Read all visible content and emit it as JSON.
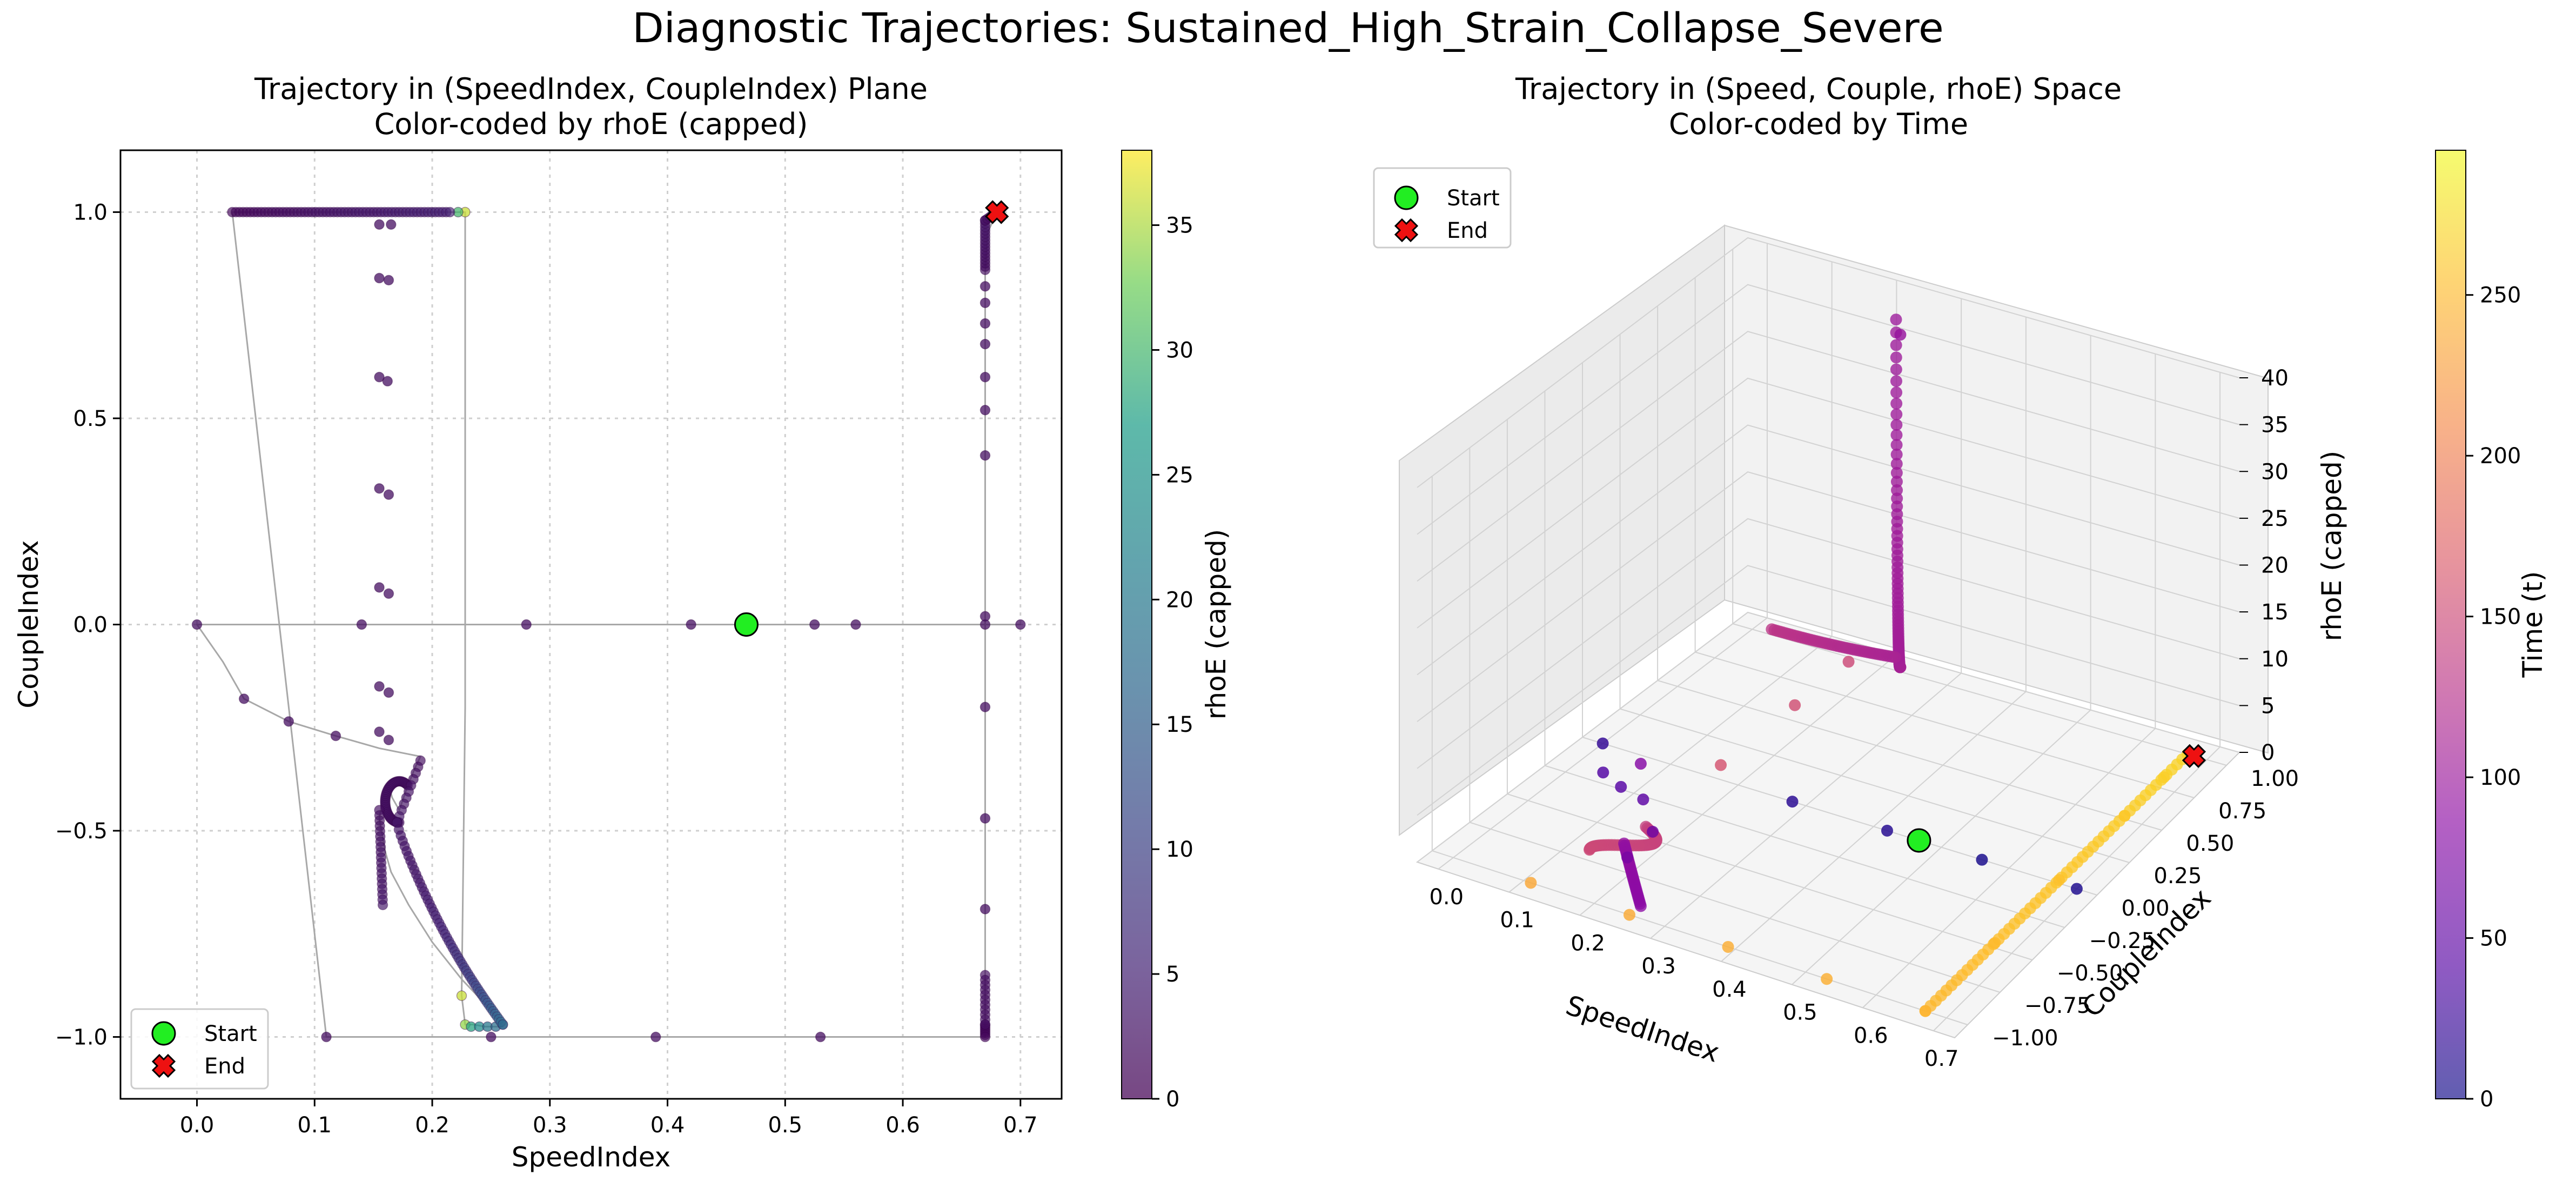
{
  "figure": {
    "suptitle": "Diagnostic Trajectories: Sustained_High_Strain_Collapse_Severe"
  },
  "legend": {
    "start_label": "Start",
    "end_label": "End"
  },
  "chart_data": [
    {
      "type": "scatter",
      "title_line1": "Trajectory in (SpeedIndex, CoupleIndex) Plane",
      "title_line2": "Color-coded by rhoE (capped)",
      "xlabel": "SpeedIndex",
      "ylabel": "CoupleIndex",
      "xlim": [
        -0.065,
        0.735
      ],
      "ylim": [
        -1.15,
        1.15
      ],
      "xticks": [
        0.0,
        0.1,
        0.2,
        0.3,
        0.4,
        0.5,
        0.6,
        0.7
      ],
      "xtick_labels": [
        "0.0",
        "0.1",
        "0.2",
        "0.3",
        "0.4",
        "0.5",
        "0.6",
        "0.7"
      ],
      "yticks": [
        -1.0,
        -0.5,
        0.0,
        0.5,
        1.0
      ],
      "ytick_labels": [
        "−1.0",
        "−0.5",
        "0.0",
        "0.5",
        "1.0"
      ],
      "grid": true,
      "legend_position": "lower-left",
      "colorbar": {
        "label": "rhoE (capped)",
        "colormap": "viridis",
        "range": [
          0,
          38
        ],
        "ticks": [
          0,
          5,
          10,
          15,
          20,
          25,
          30,
          35
        ],
        "tick_labels": [
          "0",
          "5",
          "10",
          "15",
          "20",
          "25",
          "30",
          "35"
        ]
      },
      "start": {
        "x": 0.467,
        "y": 0.0,
        "color": "#22ee22"
      },
      "end": {
        "x": 0.68,
        "y": 1.0,
        "color": "#ee1111"
      },
      "path": [
        [
          0.467,
          0.0
        ],
        [
          0.56,
          0.0
        ],
        [
          0.7,
          0.0
        ],
        [
          0.7,
          0.0
        ],
        [
          0.67,
          0.0
        ],
        [
          0.42,
          0.0
        ],
        [
          0.28,
          0.0
        ],
        [
          0.14,
          0.0
        ],
        [
          0.0,
          0.0
        ],
        [
          0.0,
          0.0
        ],
        [
          0.022,
          -0.09
        ],
        [
          0.04,
          -0.18
        ],
        [
          0.078,
          -0.235
        ],
        [
          0.118,
          -0.27
        ],
        [
          0.155,
          -0.3
        ],
        [
          0.19,
          -0.32
        ],
        [
          0.185,
          -0.35
        ],
        [
          0.178,
          -0.4
        ],
        [
          0.172,
          -0.45
        ],
        [
          0.166,
          -0.42
        ],
        [
          0.164,
          -0.4
        ],
        [
          0.158,
          -0.42
        ],
        [
          0.155,
          -0.47
        ],
        [
          0.16,
          -0.55
        ],
        [
          0.165,
          -0.6
        ],
        [
          0.18,
          -0.68
        ],
        [
          0.2,
          -0.77
        ],
        [
          0.225,
          -0.86
        ],
        [
          0.245,
          -0.92
        ],
        [
          0.26,
          -0.975
        ],
        [
          0.245,
          -0.975
        ],
        [
          0.235,
          -0.97
        ],
        [
          0.228,
          -0.97
        ],
        [
          0.225,
          -0.9
        ],
        [
          0.228,
          -0.2
        ],
        [
          0.228,
          1.0
        ],
        [
          0.2,
          1.0
        ],
        [
          0.15,
          1.0
        ],
        [
          0.1,
          1.0
        ],
        [
          0.05,
          1.0
        ],
        [
          0.03,
          1.0
        ],
        [
          0.11,
          -1.0
        ],
        [
          0.25,
          -1.0
        ],
        [
          0.39,
          -1.0
        ],
        [
          0.53,
          -1.0
        ],
        [
          0.67,
          -1.0
        ],
        [
          0.67,
          -0.69
        ],
        [
          0.67,
          -0.47
        ],
        [
          0.67,
          -0.2
        ],
        [
          0.67,
          0.02
        ],
        [
          0.67,
          0.41
        ],
        [
          0.67,
          0.68
        ],
        [
          0.67,
          0.85
        ],
        [
          0.672,
          0.95
        ],
        [
          0.68,
          1.0
        ]
      ],
      "points": [
        {
          "x": 0.0,
          "y": 0.0,
          "c": 2
        },
        {
          "x": 0.14,
          "y": 0.0,
          "c": 2
        },
        {
          "x": 0.28,
          "y": 0.0,
          "c": 2
        },
        {
          "x": 0.42,
          "y": 0.0,
          "c": 2
        },
        {
          "x": 0.525,
          "y": 0.0,
          "c": 2
        },
        {
          "x": 0.56,
          "y": 0.0,
          "c": 2
        },
        {
          "x": 0.67,
          "y": 0.0,
          "c": 2
        },
        {
          "x": 0.7,
          "y": 0.0,
          "c": 2
        },
        {
          "x": 0.04,
          "y": -0.18,
          "c": 2
        },
        {
          "x": 0.078,
          "y": -0.235,
          "c": 2
        },
        {
          "x": 0.118,
          "y": -0.27,
          "c": 2
        },
        {
          "x": 0.11,
          "y": -1.0,
          "c": 2
        },
        {
          "x": 0.25,
          "y": -1.0,
          "c": 2
        },
        {
          "x": 0.39,
          "y": -1.0,
          "c": 2
        },
        {
          "x": 0.53,
          "y": -1.0,
          "c": 2
        },
        {
          "x": 0.155,
          "y": 0.97,
          "c": 2
        },
        {
          "x": 0.165,
          "y": 0.97,
          "c": 2
        },
        {
          "x": 0.155,
          "y": 0.84,
          "c": 2
        },
        {
          "x": 0.163,
          "y": 0.835,
          "c": 2
        },
        {
          "x": 0.155,
          "y": 0.6,
          "c": 2
        },
        {
          "x": 0.162,
          "y": 0.59,
          "c": 2
        },
        {
          "x": 0.155,
          "y": 0.33,
          "c": 2
        },
        {
          "x": 0.163,
          "y": 0.315,
          "c": 2
        },
        {
          "x": 0.155,
          "y": 0.09,
          "c": 2
        },
        {
          "x": 0.163,
          "y": 0.075,
          "c": 2
        },
        {
          "x": 0.155,
          "y": -0.15,
          "c": 2
        },
        {
          "x": 0.163,
          "y": -0.165,
          "c": 2
        },
        {
          "x": 0.155,
          "y": -0.26,
          "c": 2
        },
        {
          "x": 0.163,
          "y": -0.28,
          "c": 2
        },
        {
          "x": 0.67,
          "y": -0.69,
          "c": 2
        },
        {
          "x": 0.67,
          "y": -0.47,
          "c": 2
        },
        {
          "x": 0.67,
          "y": -0.2,
          "c": 2
        },
        {
          "x": 0.67,
          "y": 0.02,
          "c": 2
        },
        {
          "x": 0.67,
          "y": 0.41,
          "c": 2
        },
        {
          "x": 0.67,
          "y": 0.52,
          "c": 2
        },
        {
          "x": 0.67,
          "y": 0.6,
          "c": 2
        },
        {
          "x": 0.67,
          "y": 0.68,
          "c": 2
        },
        {
          "x": 0.67,
          "y": 0.73,
          "c": 2
        },
        {
          "x": 0.67,
          "y": 0.78,
          "c": 2
        },
        {
          "x": 0.67,
          "y": 0.82,
          "c": 2
        },
        {
          "x": 0.225,
          "y": -0.9,
          "c": 36
        },
        {
          "x": 0.228,
          "y": -0.97,
          "c": 34
        },
        {
          "x": 0.233,
          "y": -0.975,
          "c": 28
        },
        {
          "x": 0.24,
          "y": -0.975,
          "c": 24
        },
        {
          "x": 0.247,
          "y": -0.975,
          "c": 20
        },
        {
          "x": 0.254,
          "y": -0.975,
          "c": 18
        },
        {
          "x": 0.26,
          "y": -0.97,
          "c": 16
        },
        {
          "x": 0.228,
          "y": 1.0,
          "c": 36
        },
        {
          "x": 0.222,
          "y": 1.0,
          "c": 30
        }
      ]
    },
    {
      "type": "scatter3d",
      "title_line1": "Trajectory in (Speed, Couple, rhoE) Space",
      "title_line2": "Color-coded by Time",
      "xlabel": "SpeedIndex",
      "ylabel": "CoupleIndex",
      "zlabel": "rhoE (capped)",
      "xlim": [
        -0.03,
        0.73
      ],
      "ylim": [
        -1.1,
        1.1
      ],
      "zlim": [
        0,
        40
      ],
      "xticks": [
        0.0,
        0.1,
        0.2,
        0.3,
        0.4,
        0.5,
        0.6,
        0.7
      ],
      "xtick_labels": [
        "0.0",
        "0.1",
        "0.2",
        "0.3",
        "0.4",
        "0.5",
        "0.6",
        "0.7"
      ],
      "yticks": [
        -1.0,
        -0.75,
        -0.5,
        -0.25,
        0.0,
        0.25,
        0.5,
        0.75,
        1.0
      ],
      "ytick_labels": [
        "−1.00",
        "−0.75",
        "−0.50",
        "−0.25",
        "0.00",
        "0.25",
        "0.50",
        "0.75",
        "1.00"
      ],
      "zticks": [
        0,
        5,
        10,
        15,
        20,
        25,
        30,
        35,
        40
      ],
      "ztick_labels": [
        "0",
        "5",
        "10",
        "15",
        "20",
        "25",
        "30",
        "35",
        "40"
      ],
      "grid": true,
      "legend_position": "upper-left",
      "colorbar": {
        "label": "Time (t)",
        "colormap": "plasma",
        "range": [
          0,
          295
        ],
        "ticks": [
          0,
          50,
          100,
          150,
          200,
          250
        ],
        "tick_labels": [
          "0",
          "50",
          "100",
          "150",
          "200",
          "250"
        ]
      },
      "start": {
        "x": 0.467,
        "y": 0.0,
        "z": 0,
        "color": "#22ee22"
      },
      "end": {
        "x": 0.68,
        "y": 1.0,
        "z": 0,
        "color": "#ee1111"
      },
      "points": [
        {
          "x": 0.56,
          "y": 0.0,
          "z": 0,
          "t": 5
        },
        {
          "x": 0.7,
          "y": 0.0,
          "z": 0,
          "t": 8
        },
        {
          "x": 0.42,
          "y": 0.0,
          "z": 0,
          "t": 12
        },
        {
          "x": 0.28,
          "y": 0.0,
          "z": 0,
          "t": 15
        },
        {
          "x": 0.0,
          "y": 0.0,
          "z": 0,
          "t": 20
        },
        {
          "x": 0.04,
          "y": -0.18,
          "z": 0,
          "t": 40
        },
        {
          "x": 0.078,
          "y": -0.235,
          "z": 0,
          "t": 44
        },
        {
          "x": 0.118,
          "y": -0.27,
          "z": 0,
          "t": 48
        },
        {
          "x": 0.17,
          "y": -0.45,
          "z": 0,
          "t": 60
        },
        {
          "x": 0.2,
          "y": -0.77,
          "z": 2,
          "t": 70
        },
        {
          "x": 0.26,
          "y": -0.97,
          "z": 16,
          "t": 80
        },
        {
          "x": 0.228,
          "y": 1.0,
          "z": 36,
          "t": 95
        },
        {
          "x": 0.155,
          "y": 0.97,
          "z": 0,
          "t": 150
        },
        {
          "x": 0.155,
          "y": 0.6,
          "z": 0,
          "t": 155
        },
        {
          "x": 0.155,
          "y": 0.09,
          "z": 0,
          "t": 160
        },
        {
          "x": 0.11,
          "y": -1.0,
          "z": 0,
          "t": 235
        },
        {
          "x": 0.25,
          "y": -1.0,
          "z": 0,
          "t": 238
        },
        {
          "x": 0.39,
          "y": -1.0,
          "z": 0,
          "t": 240
        },
        {
          "x": 0.53,
          "y": -1.0,
          "z": 0,
          "t": 242
        },
        {
          "x": 0.67,
          "y": -1.0,
          "z": 0,
          "t": 245
        },
        {
          "x": 0.67,
          "y": -0.47,
          "z": 0,
          "t": 250
        },
        {
          "x": 0.67,
          "y": 0.02,
          "z": 0,
          "t": 255
        },
        {
          "x": 0.67,
          "y": 0.52,
          "z": 0,
          "t": 260
        },
        {
          "x": 0.67,
          "y": 0.82,
          "z": 0,
          "t": 265
        },
        {
          "x": 0.68,
          "y": 1.0,
          "z": 0,
          "t": 270
        }
      ]
    }
  ]
}
